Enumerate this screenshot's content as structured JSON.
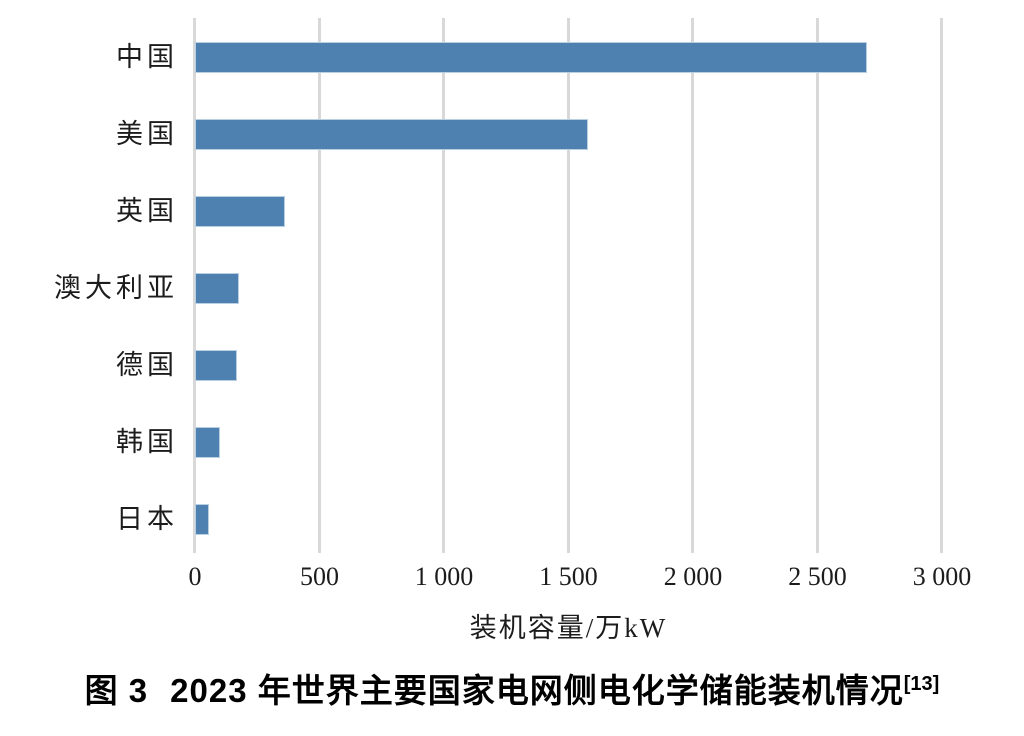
{
  "chart_data": {
    "type": "bar",
    "orientation": "horizontal",
    "categories": [
      "中国",
      "美国",
      "英国",
      "澳大利亚",
      "德国",
      "韩国",
      "日本"
    ],
    "values": [
      2700,
      1580,
      360,
      175,
      170,
      100,
      55
    ],
    "xlabel": "装机容量/万kW",
    "xlim": [
      0,
      3000
    ],
    "xticks": [
      0,
      500,
      1000,
      1500,
      2000,
      2500,
      3000
    ],
    "xtick_labels": [
      "0",
      "500",
      "1 000",
      "1 500",
      "2 000",
      "2 500",
      "3 000"
    ],
    "grid": "vertical-gridlines-light-gray",
    "legend": "none",
    "bar_color": "#4e80b0",
    "bar_border_color": "#b9cfe4",
    "gridline_color": "#d8d8d8"
  },
  "caption": {
    "prefix": "图 3",
    "title": "2023 年世界主要国家电网侧电化学储能装机情况",
    "reference": "[13]"
  }
}
